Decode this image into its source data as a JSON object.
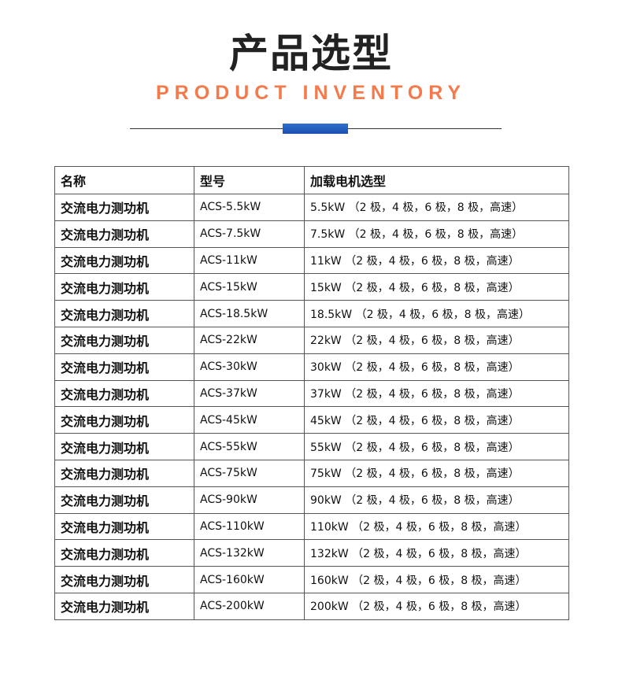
{
  "header": {
    "title": "产品选型",
    "subtitle": "PRODUCT INVENTORY",
    "accent_color": "#f47a4c",
    "bar_color": "#1b4fae"
  },
  "table": {
    "columns": [
      "名称",
      "型号",
      "加载电机选型"
    ],
    "rows": [
      [
        "交流电力测功机",
        "ACS-5.5kW",
        "5.5kW （2 极，4 极，6 极，8 极，高速）"
      ],
      [
        "交流电力测功机",
        "ACS-7.5kW",
        "7.5kW （2 极，4 极，6 极，8 极，高速）"
      ],
      [
        "交流电力测功机",
        "ACS-11kW",
        "11kW （2 极，4 极，6 极，8 极，高速）"
      ],
      [
        "交流电力测功机",
        "ACS-15kW",
        "15kW （2 极，4 极，6 极，8 极，高速）"
      ],
      [
        "交流电力测功机",
        "ACS-18.5kW",
        "18.5kW （2 极，4 极，6 极，8 极，高速）"
      ],
      [
        "交流电力测功机",
        "ACS-22kW",
        "22kW （2 极，4 极，6 极，8 极，高速）"
      ],
      [
        "交流电力测功机",
        "ACS-30kW",
        "30kW （2 极，4 极，6 极，8 极，高速）"
      ],
      [
        "交流电力测功机",
        "ACS-37kW",
        "37kW （2 极，4 极，6 极，8 极，高速）"
      ],
      [
        "交流电力测功机",
        "ACS-45kW",
        "45kW （2 极，4 极，6 极，8 极，高速）"
      ],
      [
        "交流电力测功机",
        "ACS-55kW",
        "55kW （2 极，4 极，6 极，8 极，高速）"
      ],
      [
        "交流电力测功机",
        "ACS-75kW",
        "75kW （2 极，4 极，6 极，8 极，高速）"
      ],
      [
        "交流电力测功机",
        "ACS-90kW",
        "90kW （2 极，4 极，6 极，8 极，高速）"
      ],
      [
        "交流电力测功机",
        "ACS-110kW",
        "110kW （2 极，4 极，6 极，8 极，高速）"
      ],
      [
        "交流电力测功机",
        "ACS-132kW",
        "132kW （2 极，4 极，6 极，8 极，高速）"
      ],
      [
        "交流电力测功机",
        "ACS-160kW",
        "160kW （2 极，4 极，6 极，8 极，高速）"
      ],
      [
        "交流电力测功机",
        "ACS-200kW",
        "200kW （2 极，4 极，6 极，8 极，高速）"
      ]
    ]
  }
}
